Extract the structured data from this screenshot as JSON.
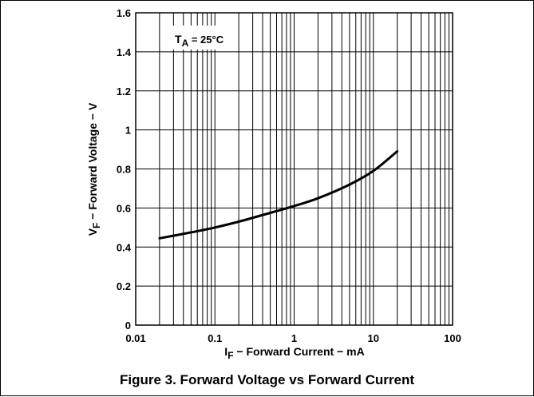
{
  "figure": {
    "caption": "Figure 3. Forward Voltage vs Forward Current"
  },
  "chart_data": {
    "type": "line",
    "xscale": "log",
    "xlim": [
      0.01,
      100
    ],
    "ylim": [
      0,
      1.6
    ],
    "grid": true,
    "title": "",
    "xlabel": {
      "main": "I",
      "sub": "F",
      "rest": " − Forward Current − mA"
    },
    "ylabel": {
      "main": "V",
      "sub": "F",
      "rest": " − Forward Voltage − V"
    },
    "x_ticks": [
      {
        "value": 0.01,
        "label": "0.01"
      },
      {
        "value": 0.1,
        "label": "0.1"
      },
      {
        "value": 1,
        "label": "1"
      },
      {
        "value": 10,
        "label": "10"
      },
      {
        "value": 100,
        "label": "100"
      }
    ],
    "y_ticks": [
      {
        "value": 0,
        "label": "0"
      },
      {
        "value": 0.2,
        "label": "0.2"
      },
      {
        "value": 0.4,
        "label": "0.4"
      },
      {
        "value": 0.6,
        "label": "0.6"
      },
      {
        "value": 0.8,
        "label": "0.8"
      },
      {
        "value": 1,
        "label": "1"
      },
      {
        "value": 1.2,
        "label": "1.2"
      },
      {
        "value": 1.4,
        "label": "1.4"
      },
      {
        "value": 1.6,
        "label": "1.6"
      }
    ],
    "annotation": {
      "main": "T",
      "sub": "A",
      "rest": " = 25°C"
    },
    "series": [
      {
        "x": [
          0.02,
          0.05,
          0.1,
          0.2,
          0.5,
          1,
          2,
          5,
          10,
          20
        ],
        "y": [
          0.445,
          0.475,
          0.5,
          0.53,
          0.575,
          0.61,
          0.65,
          0.72,
          0.79,
          0.89
        ]
      }
    ]
  }
}
